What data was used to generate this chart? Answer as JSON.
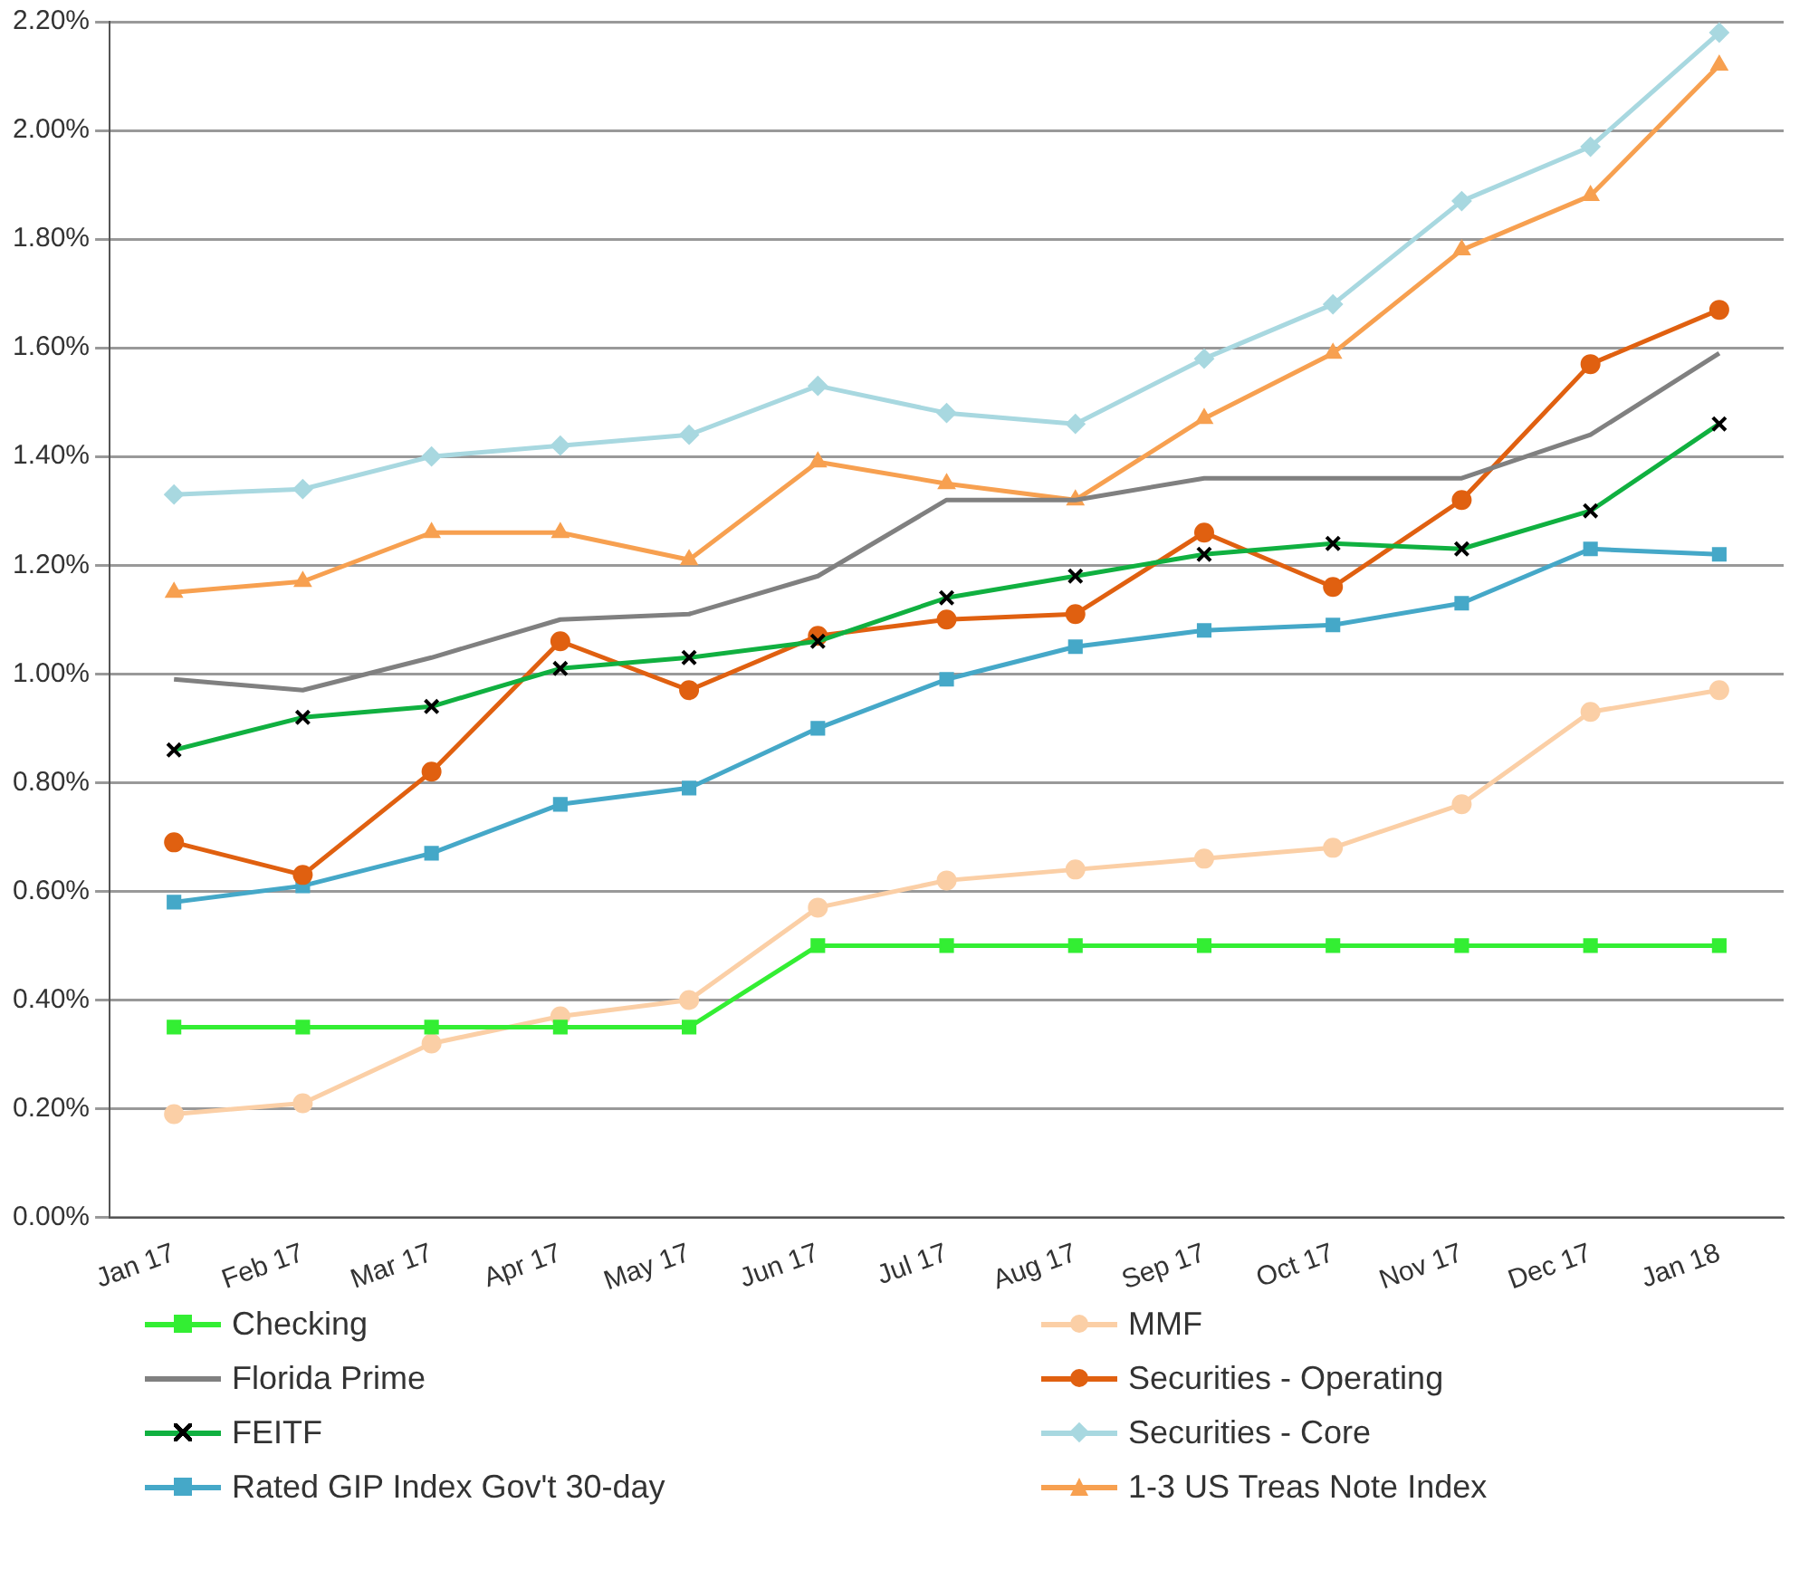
{
  "chart_data": {
    "type": "line",
    "categories": [
      "Jan 17",
      "Feb 17",
      "Mar 17",
      "Apr 17",
      "May 17",
      "Jun 17",
      "Jul 17",
      "Aug 17",
      "Sep 17",
      "Oct 17",
      "Nov 17",
      "Dec 17",
      "Jan 18"
    ],
    "ylim": [
      0,
      2.2
    ],
    "yticks": [
      {
        "value": 0,
        "label": "0.00%"
      },
      {
        "value": 0.2,
        "label": "0.20%"
      },
      {
        "value": 0.4,
        "label": "0.40%"
      },
      {
        "value": 0.6,
        "label": "0.60%"
      },
      {
        "value": 0.8,
        "label": "0.80%"
      },
      {
        "value": 1.0,
        "label": "1.00%"
      },
      {
        "value": 1.2,
        "label": "1.20%"
      },
      {
        "value": 1.4,
        "label": "1.40%"
      },
      {
        "value": 1.6,
        "label": "1.60%"
      },
      {
        "value": 1.8,
        "label": "1.80%"
      },
      {
        "value": 2.0,
        "label": "2.00%"
      },
      {
        "value": 2.2,
        "label": "2.20%"
      }
    ],
    "grid": "y",
    "legend": "bottom",
    "line_style": "solid",
    "series": [
      {
        "name": "Checking",
        "color": "#33ee33",
        "marker": "square",
        "values": [
          0.35,
          0.35,
          0.35,
          0.35,
          0.35,
          0.5,
          0.5,
          0.5,
          0.5,
          0.5,
          0.5,
          0.5,
          0.5
        ]
      },
      {
        "name": "MMF",
        "color": "#fbcfa6",
        "marker": "circle",
        "values": [
          0.19,
          0.21,
          0.32,
          0.37,
          0.4,
          0.57,
          0.62,
          0.64,
          0.66,
          0.68,
          0.76,
          0.93,
          0.97
        ]
      },
      {
        "name": "Florida Prime",
        "color": "#808080",
        "marker": "none",
        "values": [
          0.99,
          0.97,
          1.03,
          1.1,
          1.11,
          1.18,
          1.32,
          1.32,
          1.36,
          1.36,
          1.36,
          1.44,
          1.59
        ]
      },
      {
        "name": "Securities - Operating",
        "color": "#e06010",
        "marker": "circle",
        "values": [
          0.69,
          0.63,
          0.82,
          1.06,
          0.97,
          1.07,
          1.1,
          1.11,
          1.26,
          1.16,
          1.32,
          1.57,
          1.67
        ]
      },
      {
        "name": "FEITF",
        "color": "#10b040",
        "marker": "cross",
        "values": [
          0.86,
          0.92,
          0.94,
          1.01,
          1.03,
          1.06,
          1.14,
          1.18,
          1.22,
          1.24,
          1.23,
          1.3,
          1.46
        ]
      },
      {
        "name": "Securities - Core",
        "color": "#a8d8e0",
        "marker": "diamond",
        "values": [
          1.33,
          1.34,
          1.4,
          1.42,
          1.44,
          1.53,
          1.48,
          1.46,
          1.58,
          1.68,
          1.87,
          1.97,
          2.18
        ]
      },
      {
        "name": "Rated GIP Index Gov't 30-day",
        "color": "#45a8c8",
        "marker": "square",
        "values": [
          0.58,
          0.61,
          0.67,
          0.76,
          0.79,
          0.9,
          0.99,
          1.05,
          1.08,
          1.09,
          1.13,
          1.23,
          1.22
        ]
      },
      {
        "name": "1-3 US Treas Note Index",
        "color": "#f7a050",
        "marker": "triangle",
        "values": [
          1.15,
          1.17,
          1.26,
          1.26,
          1.21,
          1.39,
          1.35,
          1.32,
          1.47,
          1.59,
          1.78,
          1.88,
          2.12
        ]
      }
    ]
  }
}
